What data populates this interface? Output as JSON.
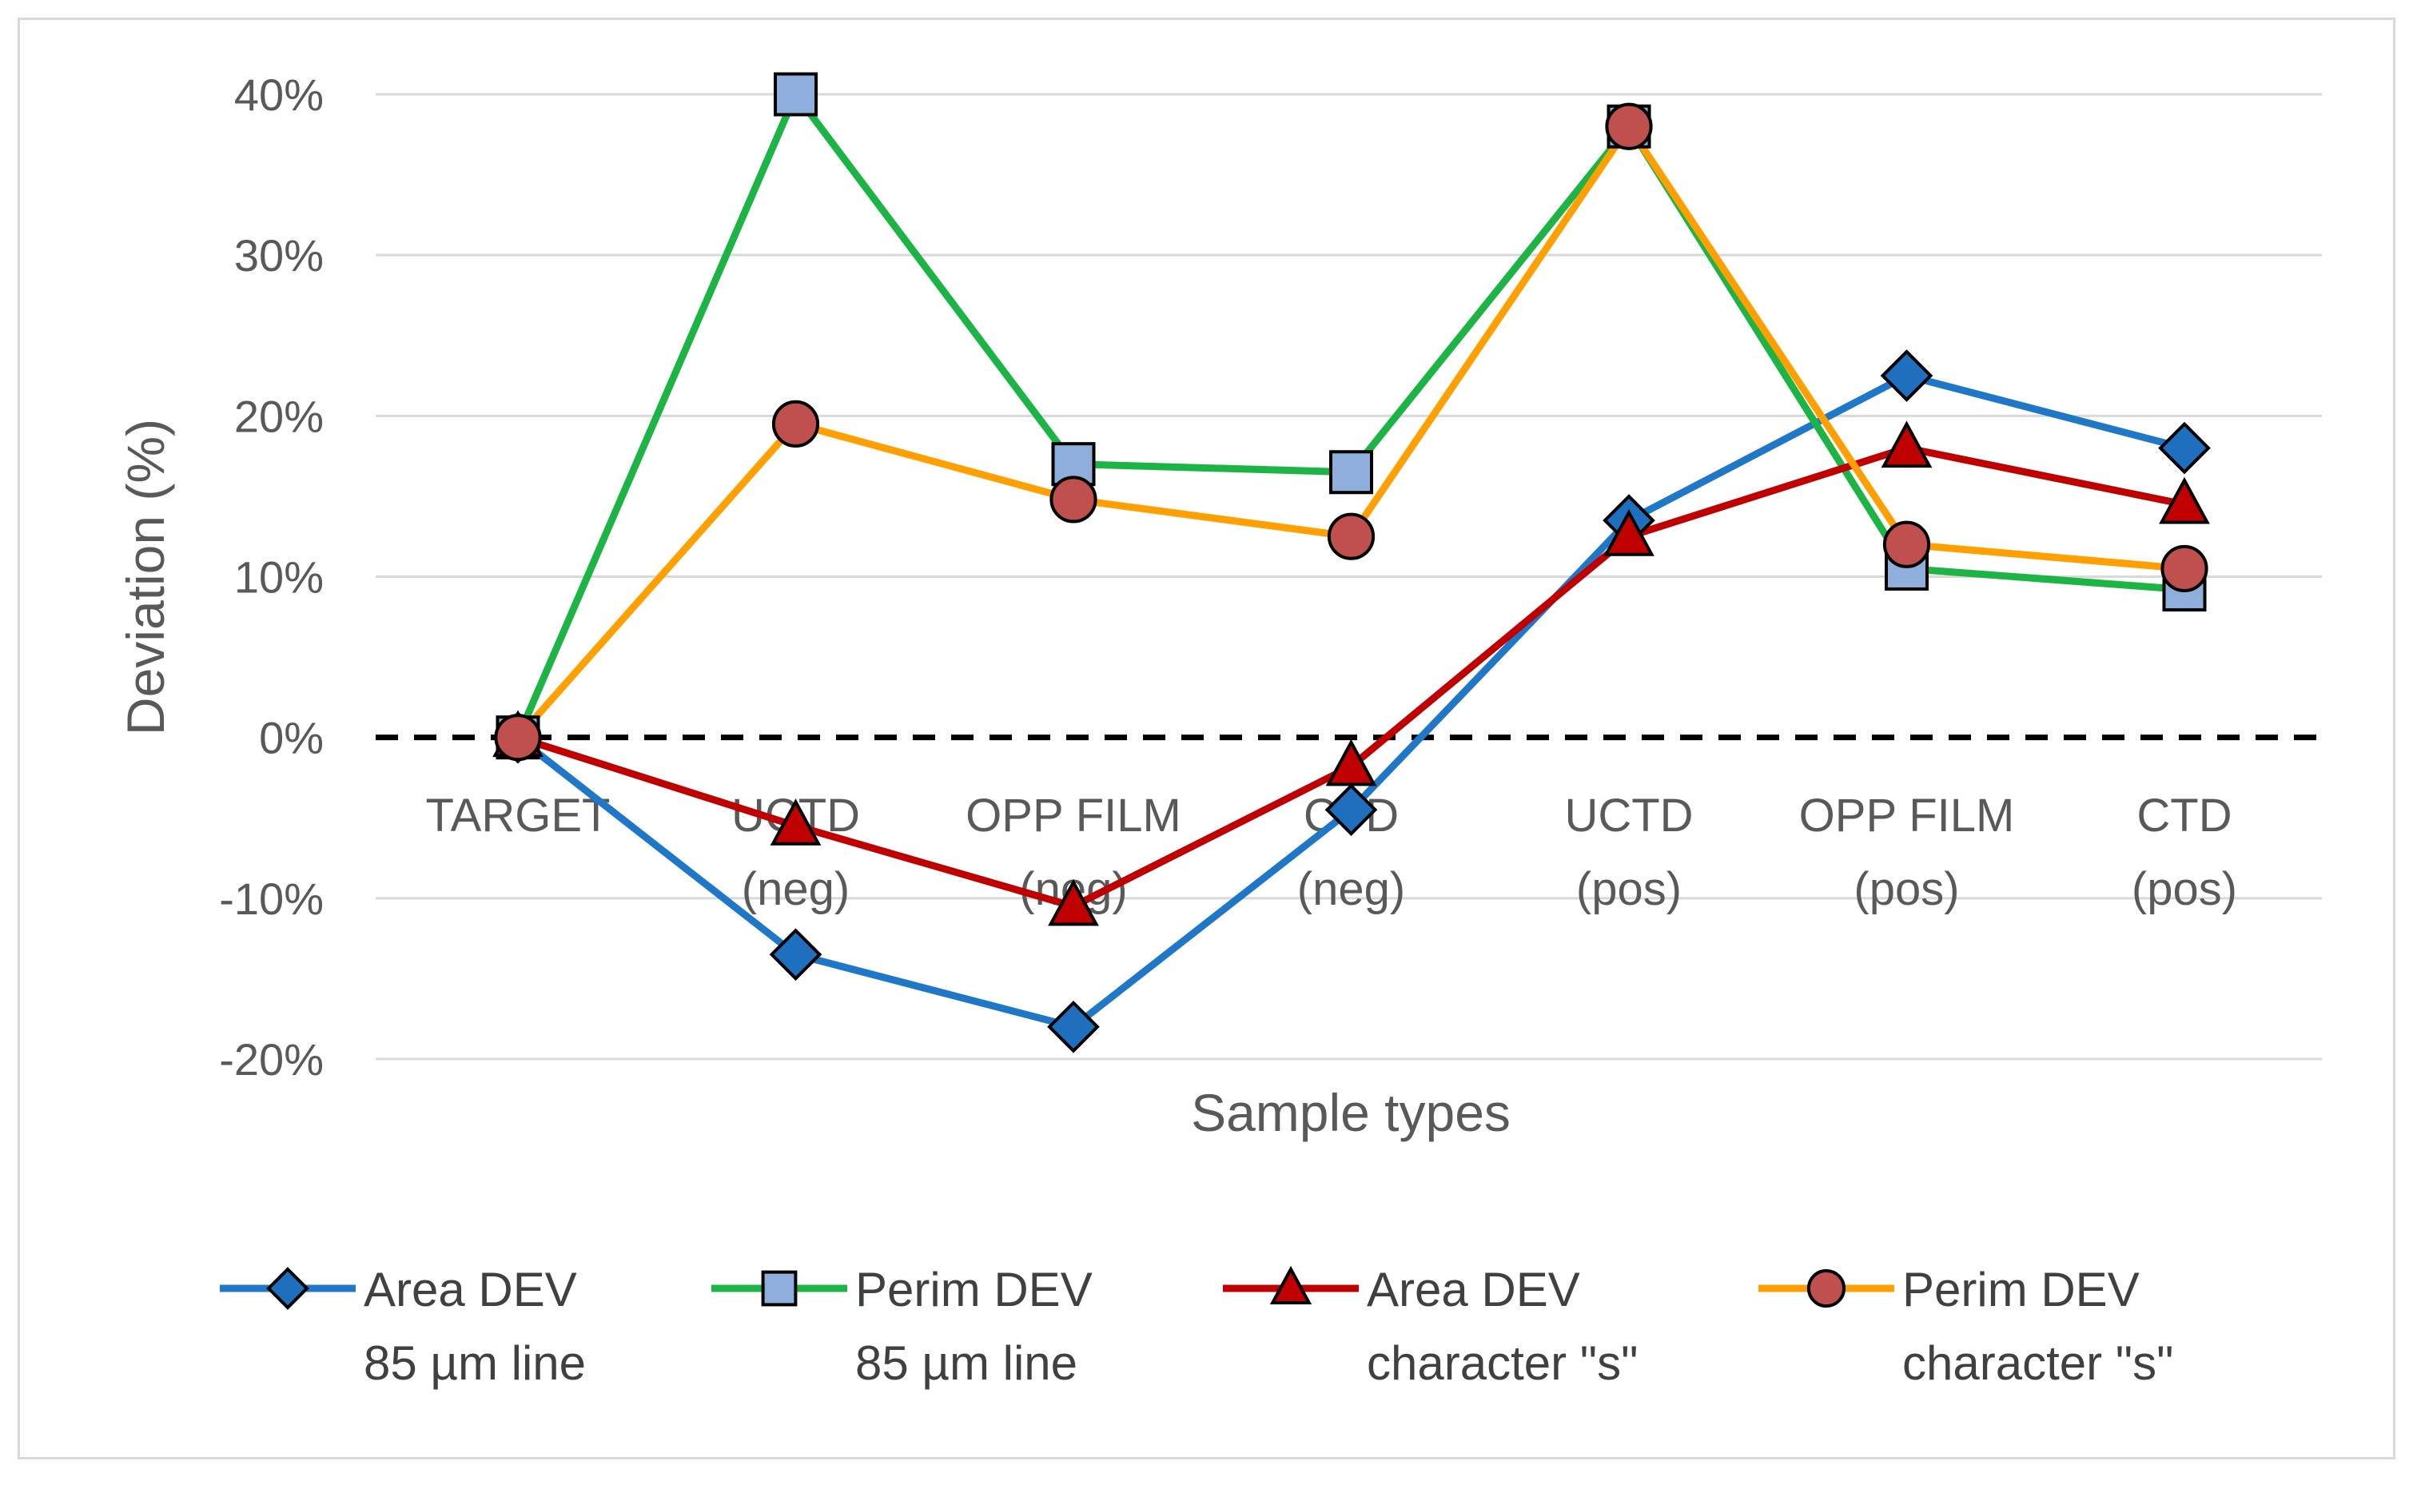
{
  "chart_data": {
    "type": "line",
    "title": "",
    "xlabel": "Sample types",
    "ylabel": "Deviation (%)",
    "ylim": [
      -20,
      40
    ],
    "yticks": [
      40,
      30,
      20,
      10,
      0,
      -10,
      -20
    ],
    "ytick_labels": [
      "40%",
      "30%",
      "20%",
      "10%",
      "0%",
      "-10%",
      "-20%"
    ],
    "grid": true,
    "legend_position": "bottom",
    "categories": [
      [
        "TARGET"
      ],
      [
        "UCTD",
        "(neg)"
      ],
      [
        "OPP FILM",
        "(neg)"
      ],
      [
        "CTD",
        "(neg)"
      ],
      [
        "UCTD",
        "(pos)"
      ],
      [
        "OPP FILM",
        "(pos)"
      ],
      [
        "CTD",
        "(pos)"
      ]
    ],
    "series": [
      {
        "name": "Area DEV 85 µm line",
        "legend_lines": [
          "Area DEV",
          "85 µm line"
        ],
        "color": "#1f77c8",
        "marker": "diamond",
        "marker_fill": "#1f6fbf",
        "values": [
          0,
          -13.5,
          -18,
          -4.5,
          13.5,
          22.5,
          18
        ]
      },
      {
        "name": "Perim DEV 85 µm line",
        "legend_lines": [
          "Perim DEV",
          "85 µm line"
        ],
        "color": "#1db446",
        "marker": "square",
        "marker_fill": "#8eaedb",
        "values": [
          0,
          40,
          17,
          16.5,
          38,
          10.5,
          9.2
        ]
      },
      {
        "name": "Area DEV character \"s\"",
        "legend_lines": [
          "Area DEV",
          "character \"s\""
        ],
        "color": "#c00000",
        "marker": "triangle",
        "marker_fill": "#c00000",
        "values": [
          0,
          -5.5,
          -10.5,
          -1.8,
          12.5,
          18,
          14.5
        ]
      },
      {
        "name": "Perim DEV character \"s\"",
        "legend_lines": [
          "Perim DEV",
          "character \"s\""
        ],
        "color": "#ffa000",
        "marker": "circle",
        "marker_fill": "#c0504d",
        "values": [
          0,
          19.5,
          14.8,
          12.5,
          38,
          12,
          10.5
        ]
      }
    ]
  }
}
